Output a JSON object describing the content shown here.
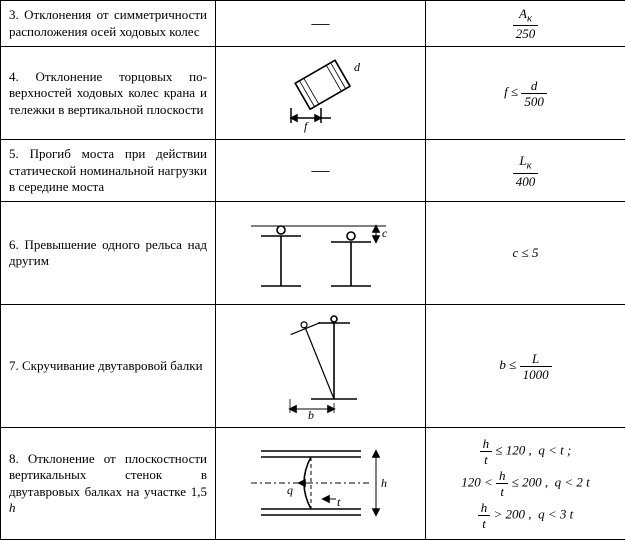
{
  "rows": [
    {
      "desc": "3. Отклонения от симметрич­ности расположения осей ходовых колес",
      "diagram": "dash",
      "formula_html": "<span class='frac'><span class='num'>A<sub>к</sub></span><span class='den'>250</span></span>"
    },
    {
      "desc": "4. Отклонение торцовых по­верхностей ходовых колес крана и тележки в вертикальной плоскости",
      "diagram": "wheel",
      "formula_html": "<span class='nb'><i>f</i> ≤ <span class='frac'><span class='num'>d</span><span class='den'>500</span></span></span>"
    },
    {
      "desc": "5. Прогиб моста при действии статической номинальной нагрузки в середине моста",
      "diagram": "dash",
      "formula_html": "<span class='frac'><span class='num'>L<sub>к</sub></span><span class='den'>400</span></span>"
    },
    {
      "desc": "6. Превышение одного рельса над другим",
      "diagram": "rails",
      "formula_html": "<span class='nb'><i>c</i> ≤ 5</span>"
    },
    {
      "desc": "7. Скручивание двутавровой балки",
      "diagram": "twist",
      "formula_html": "<span class='nb'><i>b</i> ≤ <span class='frac'><span class='num'>L</span><span class='den'>1000</span></span></span>"
    },
    {
      "desc": "8. Отклонение от плоскостности вертикальных стенок в двутавровых балках на участке 1,5 <i>h</i>",
      "diagram": "flatness",
      "formula_html": "<span class='eqline'><span class='frac'><span class='num'>h</span><span class='den'>t</span></span> ≤ 120 ,&nbsp; <i>q</i> &lt; <i>t</i> ;</span><span class='eqline'>120 &lt; <span class='frac'><span class='num'>h</span><span class='den'>t</span></span> ≤ 200 ,&nbsp; <i>q</i> &lt; 2 <i>t</i></span><span class='eqline'><span class='frac'><span class='num'>h</span><span class='den'>t</span></span> &gt; 200 ,&nbsp; <i>q</i> &lt; 3 <i>t</i></span>"
    }
  ],
  "svg_defs": {
    "stroke": "#000000",
    "thin": 1,
    "thick": 2
  }
}
